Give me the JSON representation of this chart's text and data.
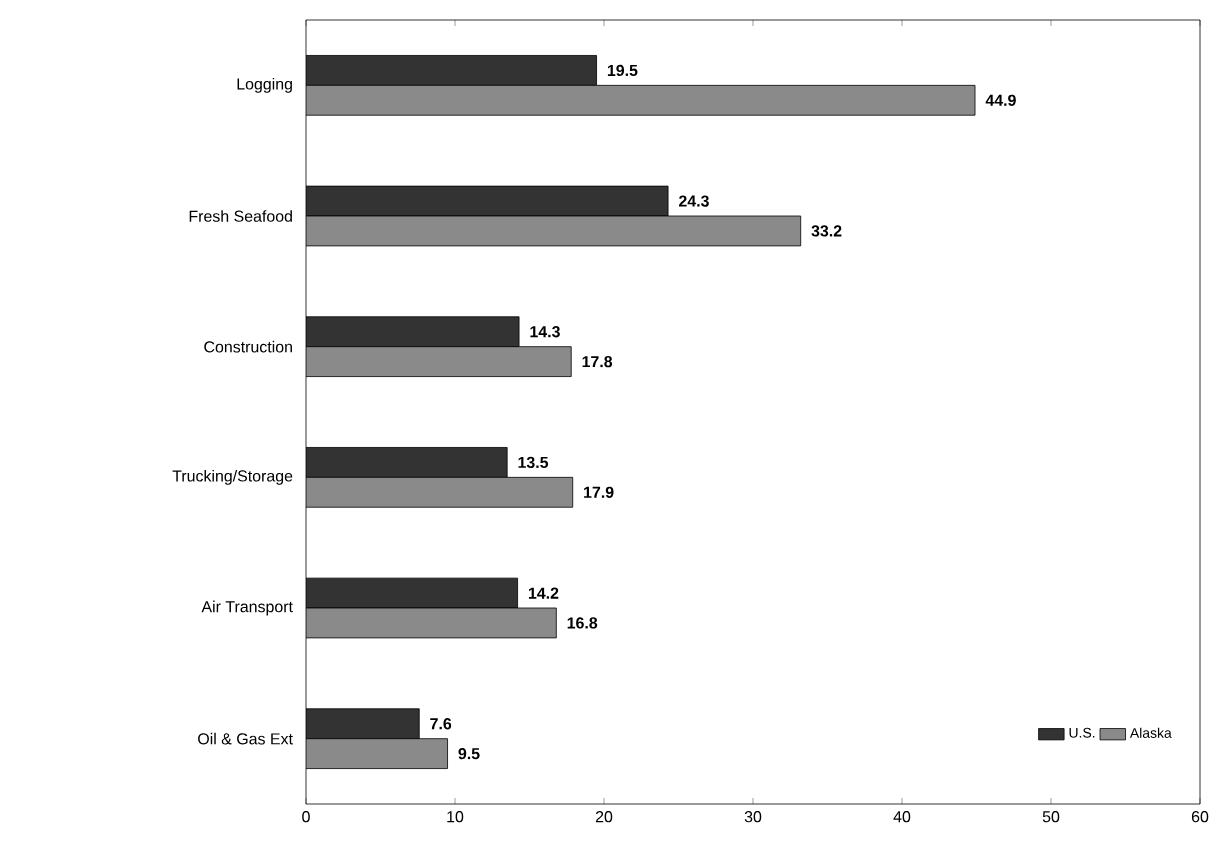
{
  "chart_data": {
    "type": "bar",
    "orientation": "horizontal",
    "categories": [
      "Logging",
      "Fresh Seafood",
      "Construction",
      "Trucking/Storage",
      "Air Transport",
      "Oil & Gas Ext"
    ],
    "series": [
      {
        "name": "U.S.",
        "color": "#333333",
        "values": [
          19.5,
          24.3,
          14.3,
          13.5,
          14.2,
          7.6
        ]
      },
      {
        "name": "Alaska",
        "color": "#8a8a8a",
        "values": [
          44.9,
          33.2,
          17.8,
          17.9,
          16.8,
          9.5
        ]
      }
    ],
    "xlim": [
      0,
      60
    ],
    "xticks": [
      0,
      10,
      20,
      30,
      40,
      50,
      60
    ],
    "data_labels": true,
    "legend": "bottom right",
    "grid": false
  }
}
